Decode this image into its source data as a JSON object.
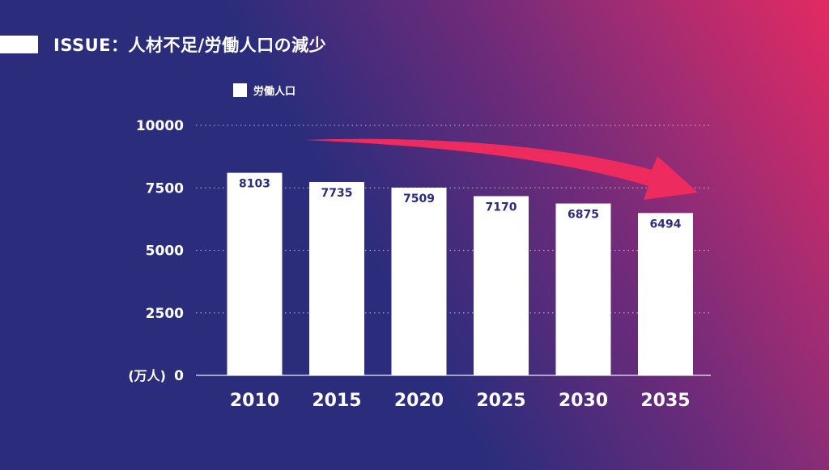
{
  "header": {
    "title": "ISSUE：人材不足/労働人口の減少"
  },
  "colors": {
    "bar": "#ffffff",
    "data_label": "#2b2d7c",
    "arrow": "#ee2b5e",
    "bg_start": "#2b2d7c",
    "bg_end": "#e32a62"
  },
  "chart_data": {
    "type": "bar",
    "title": "ISSUE：人材不足/労働人口の減少",
    "categories": [
      "2010",
      "2015",
      "2020",
      "2025",
      "2030",
      "2035"
    ],
    "series": [
      {
        "name": "労働人口",
        "values": [
          8103,
          7735,
          7509,
          7170,
          6875,
          6494
        ]
      }
    ],
    "data_labels": [
      "8103",
      "7735",
      "7509",
      "7170",
      "6875",
      "6494"
    ],
    "xlabel": "",
    "ylabel": "(万人)",
    "ylim": [
      0,
      10000
    ],
    "yticks": [
      "0",
      "2500",
      "5000",
      "7500",
      "10000"
    ],
    "ytick_values": [
      0,
      2500,
      5000,
      7500,
      10000
    ],
    "grid": "dotted horizontal",
    "legend": {
      "position": "top-left",
      "entries": [
        "労働人口"
      ]
    },
    "annotation": "downward trend arrow"
  }
}
